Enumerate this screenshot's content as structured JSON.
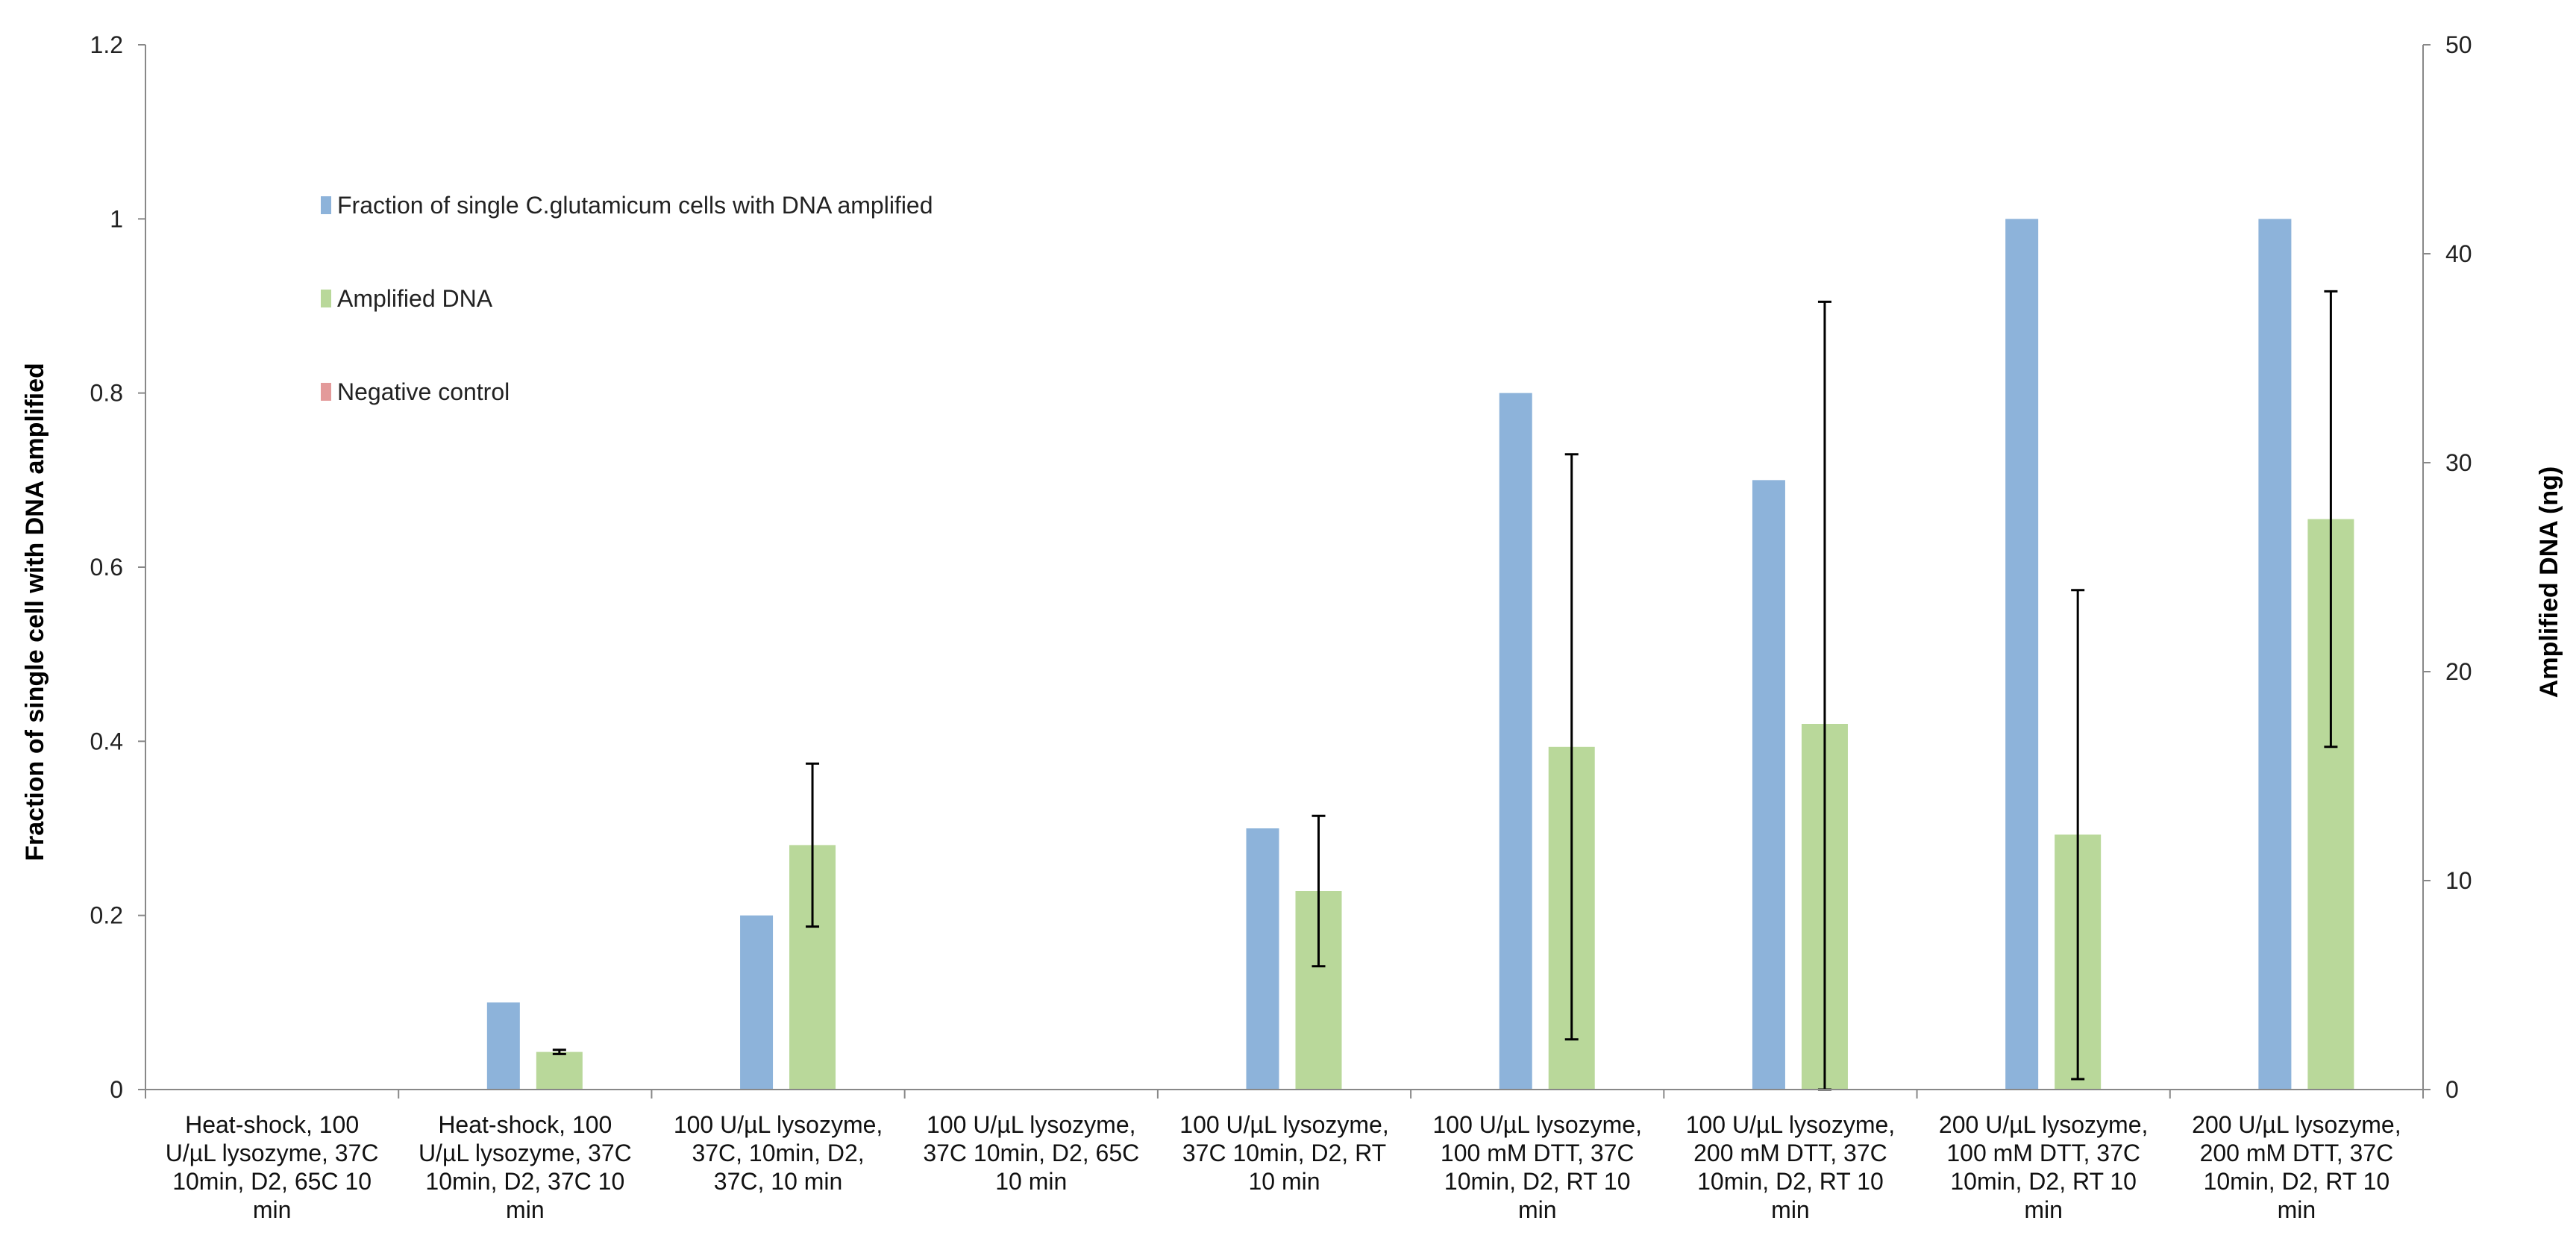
{
  "chart_data": {
    "type": "bar",
    "title": "",
    "xlabel": "",
    "ylabel_left": "Fraction of single cell with DNA amplified",
    "ylabel_right": "Amplified DNA (ng)",
    "ylim_left": [
      0,
      1.2
    ],
    "ylim_right": [
      0,
      50
    ],
    "yticks_left": [
      "0",
      "0.2",
      "0.4",
      "0.6",
      "0.8",
      "1",
      "1.2"
    ],
    "yticks_right": [
      "0",
      "10",
      "20",
      "30",
      "40",
      "50"
    ],
    "grid": false,
    "legend_position": "upper-left",
    "categories": [
      [
        "Heat-shock, 100",
        "U/µL lysozyme, 37C",
        "10min, D2, 65C 10",
        "min"
      ],
      [
        "Heat-shock, 100",
        "U/µL lysozyme, 37C",
        "10min, D2, 37C 10",
        "min"
      ],
      [
        "100 U/µL lysozyme,",
        "37C, 10min, D2,",
        "37C, 10 min"
      ],
      [
        "100 U/µL lysozyme,",
        "37C 10min, D2, 65C",
        "10 min"
      ],
      [
        "100 U/µL lysozyme,",
        "37C 10min, D2, RT",
        "10 min"
      ],
      [
        "100 U/µL lysozyme,",
        "100 mM DTT, 37C",
        "10min, D2, RT 10",
        "min"
      ],
      [
        "100 U/µL lysozyme,",
        "200 mM DTT, 37C",
        "10min, D2, RT 10",
        "min"
      ],
      [
        "200 U/µL lysozyme,",
        "100 mM DTT, 37C",
        "10min, D2, RT 10",
        "min"
      ],
      [
        "200 U/µL lysozyme,",
        "200 mM DTT, 37C",
        "10min, D2, RT 10",
        "min"
      ]
    ],
    "series": [
      {
        "name": "Fraction of single C.glutamicum cells with DNA amplified",
        "axis": "left",
        "color": "#8db3da",
        "values": [
          0,
          0.1,
          0.2,
          0,
          0.3,
          0.8,
          0.7,
          1.0,
          1.0
        ]
      },
      {
        "name": "Amplified DNA",
        "axis": "right",
        "color": "#b9d89a",
        "values": [
          0,
          1.8,
          11.7,
          0,
          9.5,
          16.4,
          17.5,
          12.2,
          27.3
        ],
        "error": [
          0,
          0.1,
          3.9,
          0,
          3.6,
          14.0,
          20.2,
          11.7,
          10.9
        ]
      },
      {
        "name": "Negative control",
        "axis": "left",
        "color": "#e39a9a",
        "values": [
          0,
          0,
          0,
          0,
          0,
          0,
          0,
          0,
          0
        ]
      }
    ]
  }
}
